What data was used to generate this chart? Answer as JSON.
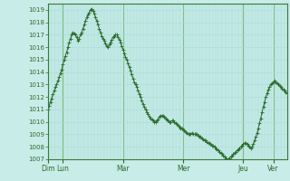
{
  "bg_color": "#c8ece8",
  "line_color": "#2d6b2d",
  "marker_color": "#2d6b2d",
  "grid_minor_color": "#a8ddd8",
  "grid_major_color": "#7ab87a",
  "axis_label_color": "#2d6b2d",
  "spine_color": "#3a7a3a",
  "ylim": [
    1007,
    1019.5
  ],
  "yticks": [
    1007,
    1008,
    1009,
    1010,
    1011,
    1012,
    1013,
    1014,
    1015,
    1016,
    1017,
    1018,
    1019
  ],
  "day_labels": [
    "Dim",
    "Lun",
    "Mar",
    "Mer",
    "Jeu",
    "Ver"
  ],
  "day_positions": [
    0,
    12,
    60,
    108,
    156,
    180
  ],
  "pressure_data": [
    1011.0,
    1011.3,
    1011.6,
    1011.9,
    1012.2,
    1012.5,
    1012.8,
    1013.0,
    1013.3,
    1013.6,
    1013.9,
    1014.2,
    1014.6,
    1015.0,
    1015.3,
    1015.6,
    1016.0,
    1016.4,
    1016.7,
    1017.0,
    1017.2,
    1017.1,
    1017.0,
    1016.8,
    1016.5,
    1016.7,
    1017.0,
    1017.2,
    1017.5,
    1017.8,
    1018.1,
    1018.4,
    1018.6,
    1018.8,
    1019.0,
    1019.1,
    1018.9,
    1018.7,
    1018.4,
    1018.1,
    1017.8,
    1017.5,
    1017.2,
    1016.9,
    1016.7,
    1016.5,
    1016.3,
    1016.1,
    1016.0,
    1016.2,
    1016.4,
    1016.6,
    1016.8,
    1016.9,
    1017.0,
    1017.0,
    1016.8,
    1016.6,
    1016.4,
    1016.1,
    1015.8,
    1015.5,
    1015.2,
    1015.0,
    1014.7,
    1014.4,
    1014.1,
    1013.8,
    1013.5,
    1013.2,
    1013.0,
    1012.8,
    1012.5,
    1012.2,
    1012.0,
    1011.7,
    1011.4,
    1011.2,
    1011.0,
    1010.8,
    1010.6,
    1010.4,
    1010.3,
    1010.2,
    1010.1,
    1010.0,
    1010.0,
    1010.1,
    1010.2,
    1010.4,
    1010.5,
    1010.5,
    1010.5,
    1010.4,
    1010.3,
    1010.2,
    1010.1,
    1010.0,
    1010.0,
    1010.1,
    1010.1,
    1010.0,
    1009.9,
    1009.8,
    1009.7,
    1009.6,
    1009.5,
    1009.5,
    1009.4,
    1009.3,
    1009.2,
    1009.1,
    1009.0,
    1009.0,
    1009.0,
    1009.1,
    1009.0,
    1009.0,
    1009.0,
    1009.0,
    1008.9,
    1008.8,
    1008.8,
    1008.7,
    1008.6,
    1008.5,
    1008.5,
    1008.4,
    1008.3,
    1008.3,
    1008.2,
    1008.1,
    1008.1,
    1008.0,
    1007.9,
    1007.8,
    1007.7,
    1007.6,
    1007.5,
    1007.4,
    1007.3,
    1007.2,
    1007.1,
    1007.0,
    1007.0,
    1007.1,
    1007.2,
    1007.3,
    1007.4,
    1007.5,
    1007.6,
    1007.7,
    1007.8,
    1007.9,
    1008.0,
    1008.1,
    1008.2,
    1008.3,
    1008.3,
    1008.2,
    1008.1,
    1008.0,
    1007.9,
    1008.0,
    1008.2,
    1008.5,
    1008.8,
    1009.1,
    1009.5,
    1009.9,
    1010.3,
    1010.8,
    1011.2,
    1011.6,
    1012.0,
    1012.3,
    1012.6,
    1012.8,
    1013.0,
    1013.1,
    1013.2,
    1013.3,
    1013.2,
    1013.1,
    1013.0,
    1012.9,
    1012.8,
    1012.7,
    1012.6,
    1012.5,
    1012.4,
    1012.3
  ]
}
